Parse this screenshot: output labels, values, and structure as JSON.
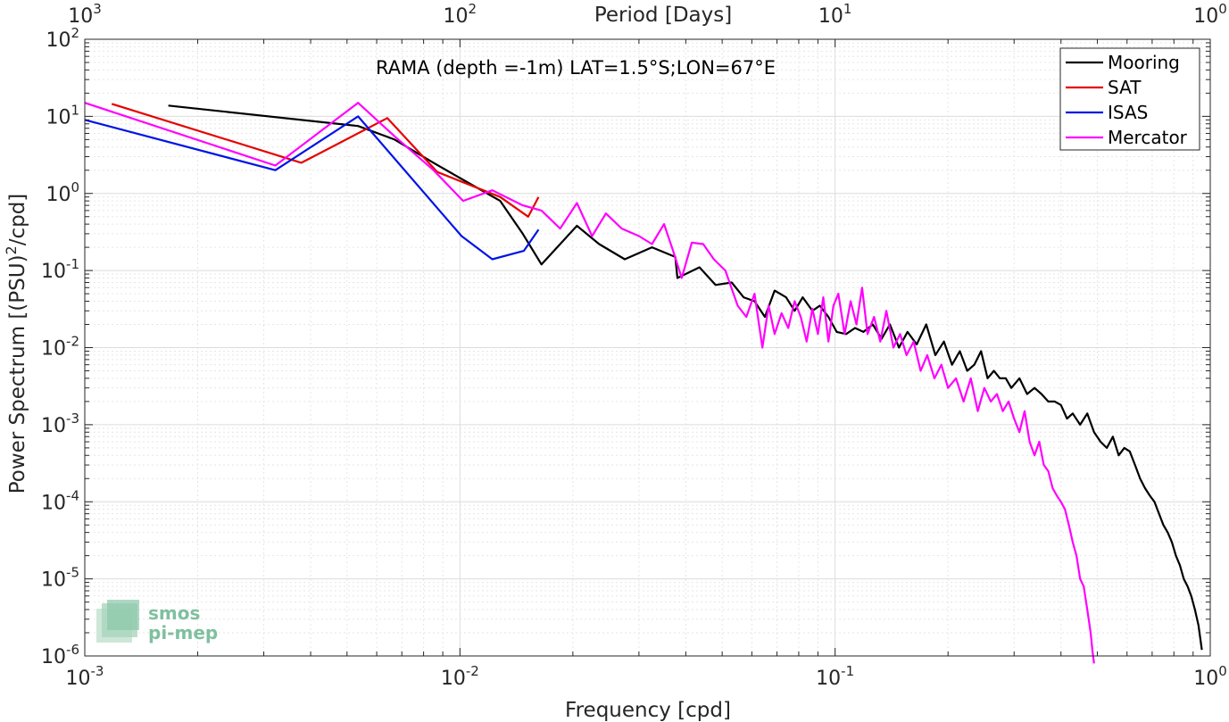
{
  "chart_data": {
    "type": "line",
    "title": "RAMA (depth =-1m) LAT=1.5°S;LON=67°E",
    "xlabel": "Frequency [cpd]",
    "ylabel": "Power Spectrum [(PSU)²/cpd]",
    "top_xlabel": "Period [Days]",
    "x_scale": "log",
    "y_scale": "log",
    "xlim": [
      0.001,
      1
    ],
    "ylim": [
      1e-06,
      100
    ],
    "grid": true,
    "legend_position": "top-right",
    "x_ticks": [
      {
        "base": "10",
        "exp": "-3",
        "value": 0.001
      },
      {
        "base": "10",
        "exp": "-2",
        "value": 0.01
      },
      {
        "base": "10",
        "exp": "-1",
        "value": 0.1
      },
      {
        "base": "10",
        "exp": "0",
        "value": 1
      }
    ],
    "top_ticks": [
      {
        "base": "10",
        "exp": "3",
        "value": 0.001
      },
      {
        "base": "10",
        "exp": "2",
        "value": 0.01
      },
      {
        "base": "10",
        "exp": "1",
        "value": 0.1
      },
      {
        "base": "10",
        "exp": "0",
        "value": 1
      }
    ],
    "y_ticks": [
      {
        "base": "10",
        "exp": "2",
        "value": 100
      },
      {
        "base": "10",
        "exp": "1",
        "value": 10
      },
      {
        "base": "10",
        "exp": "0",
        "value": 1
      },
      {
        "base": "10",
        "exp": "-1",
        "value": 0.1
      },
      {
        "base": "10",
        "exp": "-2",
        "value": 0.01
      },
      {
        "base": "10",
        "exp": "-3",
        "value": 0.001
      },
      {
        "base": "10",
        "exp": "-4",
        "value": 0.0001
      },
      {
        "base": "10",
        "exp": "-5",
        "value": 1e-05
      },
      {
        "base": "10",
        "exp": "-6",
        "value": 1e-06
      }
    ],
    "series": [
      {
        "name": "Mooring",
        "color": "#000000",
        "x": [
          0.00167,
          0.00535,
          0.0067,
          0.0085,
          0.0102,
          0.0128,
          0.0147,
          0.0165,
          0.0185,
          0.0205,
          0.0235,
          0.0275,
          0.0325,
          0.0375,
          0.038,
          0.0435,
          0.048,
          0.053,
          0.057,
          0.061,
          0.065,
          0.069,
          0.074,
          0.078,
          0.082,
          0.087,
          0.091,
          0.096,
          0.101,
          0.107,
          0.113,
          0.119,
          0.126,
          0.133,
          0.14,
          0.148,
          0.156,
          0.165,
          0.175,
          0.185,
          0.195,
          0.205,
          0.215,
          0.225,
          0.235,
          0.245,
          0.255,
          0.265,
          0.275,
          0.285,
          0.295,
          0.31,
          0.325,
          0.34,
          0.355,
          0.37,
          0.385,
          0.4,
          0.415,
          0.43,
          0.45,
          0.47,
          0.49,
          0.51,
          0.53,
          0.55,
          0.57,
          0.59,
          0.61,
          0.63,
          0.65,
          0.67,
          0.69,
          0.71,
          0.73,
          0.75,
          0.77,
          0.79,
          0.81,
          0.83,
          0.85,
          0.87,
          0.89,
          0.91,
          0.93,
          0.95
        ],
        "y": [
          13.8,
          7.5,
          5,
          2.5,
          1.5,
          0.8,
          0.3,
          0.12,
          0.22,
          0.38,
          0.22,
          0.14,
          0.2,
          0.15,
          0.08,
          0.11,
          0.065,
          0.07,
          0.045,
          0.04,
          0.025,
          0.055,
          0.045,
          0.03,
          0.045,
          0.03,
          0.035,
          0.025,
          0.016,
          0.015,
          0.018,
          0.016,
          0.02,
          0.013,
          0.02,
          0.01,
          0.016,
          0.011,
          0.02,
          0.008,
          0.012,
          0.006,
          0.009,
          0.005,
          0.006,
          0.009,
          0.004,
          0.005,
          0.004,
          0.004,
          0.003,
          0.004,
          0.0025,
          0.003,
          0.0025,
          0.002,
          0.002,
          0.0018,
          0.0012,
          0.0014,
          0.001,
          0.0014,
          0.0008,
          0.0006,
          0.0005,
          0.0007,
          0.0004,
          0.0005,
          0.00045,
          0.0003,
          0.0002,
          0.00015,
          0.00012,
          0.0001,
          7e-05,
          5e-05,
          4e-05,
          3e-05,
          2e-05,
          1.5e-05,
          1e-05,
          8e-06,
          6e-06,
          4e-06,
          2.5e-06,
          1.2e-06
        ]
      },
      {
        "name": "SAT",
        "color": "#e60000",
        "x": [
          0.00118,
          0.00378,
          0.0064,
          0.0087,
          0.0128,
          0.0152,
          0.0162
        ],
        "y": [
          14.5,
          2.5,
          9.5,
          1.9,
          0.9,
          0.5,
          0.9
        ]
      },
      {
        "name": "ISAS",
        "color": "#0014e6",
        "x": [
          0.001,
          0.00322,
          0.00535,
          0.0101,
          0.0122,
          0.0148,
          0.0162
        ],
        "y": [
          9,
          2,
          10,
          0.28,
          0.14,
          0.18,
          0.34
        ]
      },
      {
        "name": "Mercator",
        "color": "#ff00ff",
        "x": [
          0.001,
          0.00322,
          0.00535,
          0.0067,
          0.0085,
          0.0102,
          0.0122,
          0.0147,
          0.0165,
          0.0185,
          0.0205,
          0.0225,
          0.0245,
          0.027,
          0.03,
          0.0325,
          0.035,
          0.037,
          0.039,
          0.0415,
          0.0445,
          0.0475,
          0.051,
          0.055,
          0.058,
          0.061,
          0.064,
          0.0665,
          0.069,
          0.072,
          0.075,
          0.078,
          0.081,
          0.084,
          0.087,
          0.09,
          0.093,
          0.096,
          0.099,
          0.102,
          0.106,
          0.11,
          0.114,
          0.118,
          0.122,
          0.127,
          0.132,
          0.137,
          0.143,
          0.149,
          0.155,
          0.162,
          0.169,
          0.176,
          0.184,
          0.192,
          0.2,
          0.21,
          0.22,
          0.23,
          0.24,
          0.25,
          0.26,
          0.27,
          0.28,
          0.29,
          0.3,
          0.31,
          0.32,
          0.33,
          0.34,
          0.35,
          0.36,
          0.37,
          0.38,
          0.39,
          0.4,
          0.41,
          0.42,
          0.43,
          0.44,
          0.45,
          0.46,
          0.47,
          0.48,
          0.485,
          0.49
        ],
        "y": [
          15,
          2.3,
          15,
          5.5,
          2,
          0.8,
          1.1,
          0.7,
          0.6,
          0.35,
          0.75,
          0.28,
          0.55,
          0.35,
          0.28,
          0.22,
          0.4,
          0.18,
          0.08,
          0.23,
          0.22,
          0.14,
          0.1,
          0.035,
          0.025,
          0.05,
          0.01,
          0.035,
          0.015,
          0.028,
          0.018,
          0.04,
          0.025,
          0.012,
          0.032,
          0.015,
          0.045,
          0.012,
          0.035,
          0.05,
          0.015,
          0.04,
          0.02,
          0.06,
          0.015,
          0.025,
          0.012,
          0.03,
          0.01,
          0.015,
          0.008,
          0.012,
          0.005,
          0.008,
          0.004,
          0.006,
          0.003,
          0.004,
          0.002,
          0.004,
          0.0015,
          0.003,
          0.002,
          0.0025,
          0.0015,
          0.002,
          0.0012,
          0.0008,
          0.0015,
          0.0006,
          0.0004,
          0.0006,
          0.0003,
          0.00025,
          0.00015,
          0.00012,
          0.0001,
          8e-05,
          5e-05,
          3e-05,
          2e-05,
          1e-05,
          8e-06,
          4e-06,
          2e-06,
          1.2e-06,
          8e-07
        ]
      }
    ]
  },
  "logo": {
    "line1": "smos",
    "line2": "pi-mep"
  }
}
